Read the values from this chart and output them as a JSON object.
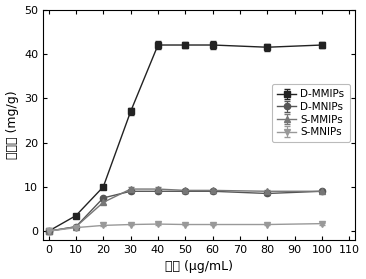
{
  "x": [
    0,
    10,
    20,
    30,
    40,
    50,
    60,
    80,
    100
  ],
  "D_MMIPs": [
    0,
    3.5,
    10.0,
    27.0,
    42.0,
    42.0,
    42.0,
    41.5,
    42.0
  ],
  "D_MNIPs": [
    0,
    1.0,
    7.5,
    9.0,
    9.0,
    9.0,
    9.0,
    8.5,
    9.0
  ],
  "S_MMIPs": [
    0,
    1.0,
    6.5,
    9.5,
    9.5,
    9.2,
    9.2,
    9.0,
    9.0
  ],
  "S_MNIPs": [
    0,
    0.8,
    1.3,
    1.5,
    1.6,
    1.5,
    1.5,
    1.5,
    1.7
  ],
  "D_MMIPs_err": [
    0,
    0.3,
    0.4,
    0.8,
    0.8,
    0.7,
    0.8,
    0.8,
    0.7
  ],
  "D_MNIPs_err": [
    0,
    0.2,
    0.3,
    0.4,
    0.4,
    0.4,
    0.4,
    0.4,
    0.4
  ],
  "S_MMIPs_err": [
    0,
    0.2,
    0.3,
    0.4,
    0.4,
    0.3,
    0.3,
    0.3,
    0.3
  ],
  "S_MNIPs_err": [
    0,
    0.15,
    0.2,
    0.2,
    0.2,
    0.2,
    0.2,
    0.2,
    0.2
  ],
  "color_D_MMIPs": "#222222",
  "color_D_MNIPs": "#555555",
  "color_S_MMIPs": "#777777",
  "color_S_MNIPs": "#999999",
  "xlabel": "浓度 (μg/mL)",
  "ylabel": "吸附量 (mg/g)",
  "xlim": [
    -2,
    112
  ],
  "ylim": [
    -2,
    50
  ],
  "xticks": [
    0,
    10,
    20,
    30,
    40,
    50,
    60,
    70,
    80,
    90,
    100,
    110
  ],
  "yticks": [
    0,
    10,
    20,
    30,
    40,
    50
  ]
}
